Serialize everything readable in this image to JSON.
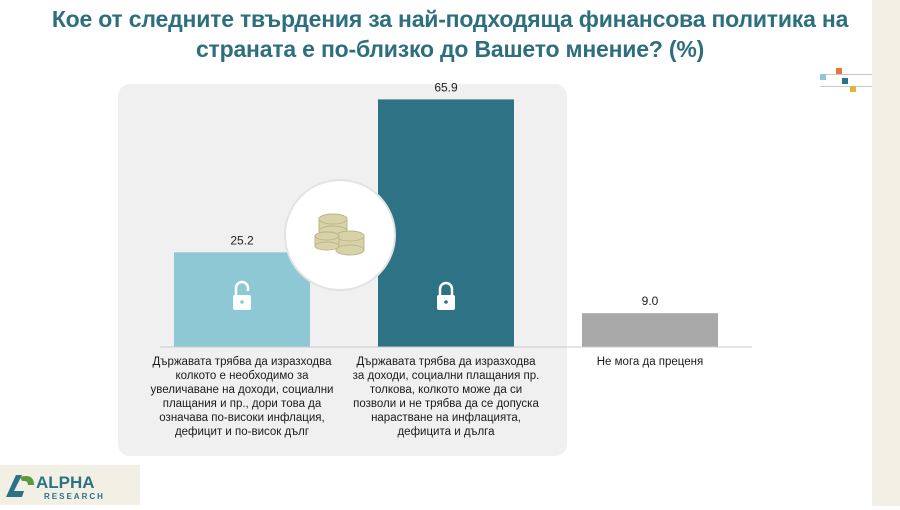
{
  "title": "Кое от следните твърдения за най-подходяща финансова политика на страната е по-близко до Вашето мнение? (%)",
  "chart_data": {
    "type": "bar",
    "title": "Кое от следните твърдения за най-подходяща финансова политика на страната е по-близко до Вашето мнение? (%)",
    "categories": [
      "Държавата трябва да изразходва колкото е необходимо за увеличаване на доходи, социални плащания и пр., дори това да означава по-високи инфлация, дефицит и по-висок дълг",
      "Държавата трябва да изразходва за доходи, социални плащания пр. толкова, колкото може да си позволи и не трябва да се допуска нарастване на инфлацията, дефицита и дълга",
      "Не мога да преценя"
    ],
    "values": [
      25.2,
      65.9,
      9.0
    ],
    "value_labels": [
      "25.2",
      "65.9",
      "9.0"
    ],
    "colors": [
      "#8ec8d4",
      "#2e7285",
      "#a8a8a8"
    ],
    "bar_icons": [
      "unlocked-padlock-icon",
      "locked-padlock-icon",
      ""
    ],
    "ylim": [
      0,
      70
    ],
    "grid": false,
    "legend": "none"
  },
  "decor": {
    "center_icon": "coins-icon"
  },
  "logo": {
    "name": "ALPHA",
    "sub": "RESEARCH"
  }
}
